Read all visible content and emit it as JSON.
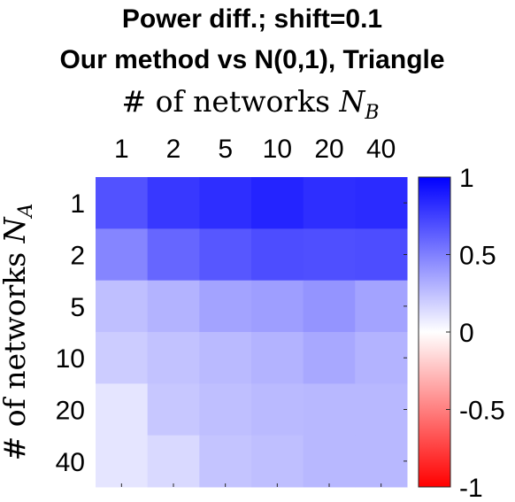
{
  "chart_data": {
    "type": "heatmap",
    "title_line1": "Power diff.; shift=0.1",
    "title_line2": "Our method vs N(0,1), Triangle",
    "xlabel": {
      "prefix": "# of networks ",
      "symbol": "N",
      "subscript": "B"
    },
    "ylabel": {
      "prefix": "# of networks ",
      "symbol": "N",
      "subscript": "A"
    },
    "x_categories": [
      "1",
      "2",
      "5",
      "10",
      "20",
      "40"
    ],
    "y_categories": [
      "1",
      "2",
      "5",
      "10",
      "20",
      "40"
    ],
    "values": [
      [
        0.68,
        0.78,
        0.82,
        0.86,
        0.82,
        0.83
      ],
      [
        0.48,
        0.6,
        0.66,
        0.7,
        0.69,
        0.7
      ],
      [
        0.25,
        0.3,
        0.36,
        0.38,
        0.42,
        0.36
      ],
      [
        0.2,
        0.24,
        0.27,
        0.3,
        0.34,
        0.3
      ],
      [
        0.1,
        0.22,
        0.25,
        0.27,
        0.28,
        0.28
      ],
      [
        0.1,
        0.15,
        0.23,
        0.25,
        0.28,
        0.28
      ]
    ],
    "colorbar": {
      "range": [
        -1,
        1
      ],
      "ticks": [
        "1",
        "0.5",
        "0",
        "-0.5",
        "-1"
      ],
      "low_color": "#ff0000",
      "mid_color": "#ffffff",
      "high_color": "#0000ff"
    }
  }
}
